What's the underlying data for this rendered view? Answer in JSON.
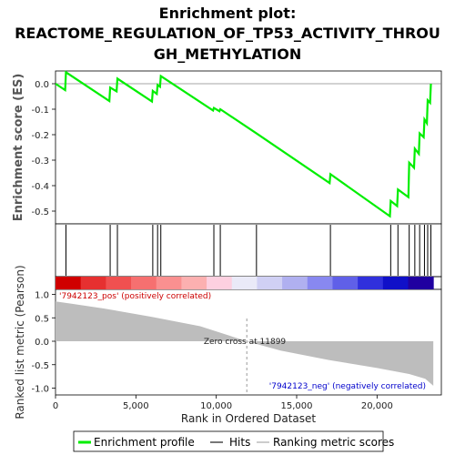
{
  "title_line1": "Enrichment plot:",
  "title_line2": "REACTOME_REGULATION_OF_TP53_ACTIVITY_THROU",
  "title_line3": "GH_METHYLATION",
  "top_ylabel": "Enrichment score (ES)",
  "bottom_ylabel": "Ranked list metric (Pearson)",
  "xlabel": "Rank in Ordered Dataset",
  "pos_label": "'7942123_pos' (positively correlated)",
  "neg_label": "'7942123_neg' (negatively correlated)",
  "zero_cross_label": "Zero cross at 11899",
  "legend": {
    "profile": "Enrichment profile",
    "hits": "Hits",
    "metric": "Ranking metric scores"
  },
  "colors": {
    "profile": "#00ee00",
    "hits": "#000000",
    "metric_fill": "#bdbdbd",
    "pos_text": "#cc0000",
    "neg_text": "#0000cc"
  },
  "chart_data": {
    "type": "line",
    "es_axis": {
      "ylim": [
        -0.55,
        0.05
      ],
      "ticks": [
        "0.0",
        "-0.1",
        "-0.2",
        "-0.3",
        "-0.4",
        "-0.5"
      ]
    },
    "metric_axis": {
      "ylim": [
        -1.0,
        1.0
      ],
      "ticks": [
        "1.0",
        "0.5",
        "0.0",
        "-0.5",
        "-1.0"
      ]
    },
    "x_axis": {
      "xlim": [
        0,
        24000
      ],
      "ticks": [
        "0",
        "5,000",
        "10,000",
        "15,000",
        "20,000"
      ]
    },
    "total_rank": 23500,
    "zero_cross": 11899,
    "hits": [
      650,
      3400,
      3850,
      6050,
      6350,
      6550,
      9850,
      10250,
      12500,
      17100,
      20850,
      21300,
      22000,
      22350,
      22650,
      22950,
      23150,
      23350
    ],
    "es_profile": [
      [
        0,
        0.0
      ],
      [
        600,
        -0.025
      ],
      [
        650,
        0.045
      ],
      [
        3350,
        -0.068
      ],
      [
        3400,
        -0.015
      ],
      [
        3800,
        -0.03
      ],
      [
        3850,
        0.02
      ],
      [
        6000,
        -0.07
      ],
      [
        6050,
        -0.028
      ],
      [
        6300,
        -0.04
      ],
      [
        6350,
        -0.005
      ],
      [
        6500,
        -0.012
      ],
      [
        6550,
        0.03
      ],
      [
        9800,
        -0.105
      ],
      [
        9850,
        -0.095
      ],
      [
        10200,
        -0.108
      ],
      [
        10250,
        -0.1
      ],
      [
        12500,
        -0.195
      ],
      [
        17050,
        -0.39
      ],
      [
        17100,
        -0.355
      ],
      [
        20800,
        -0.52
      ],
      [
        20850,
        -0.46
      ],
      [
        21250,
        -0.48
      ],
      [
        21300,
        -0.415
      ],
      [
        21950,
        -0.445
      ],
      [
        22000,
        -0.31
      ],
      [
        22300,
        -0.33
      ],
      [
        22350,
        -0.255
      ],
      [
        22600,
        -0.275
      ],
      [
        22650,
        -0.195
      ],
      [
        22900,
        -0.21
      ],
      [
        22950,
        -0.14
      ],
      [
        23100,
        -0.155
      ],
      [
        23150,
        -0.065
      ],
      [
        23300,
        -0.075
      ],
      [
        23350,
        0.0
      ]
    ],
    "metric_curve": [
      [
        0,
        0.85
      ],
      [
        1000,
        0.8
      ],
      [
        3000,
        0.7
      ],
      [
        6000,
        0.52
      ],
      [
        9000,
        0.32
      ],
      [
        11899,
        0.0
      ],
      [
        14000,
        -0.2
      ],
      [
        17000,
        -0.4
      ],
      [
        20000,
        -0.57
      ],
      [
        22000,
        -0.7
      ],
      [
        23000,
        -0.8
      ],
      [
        23500,
        -0.95
      ]
    ]
  }
}
